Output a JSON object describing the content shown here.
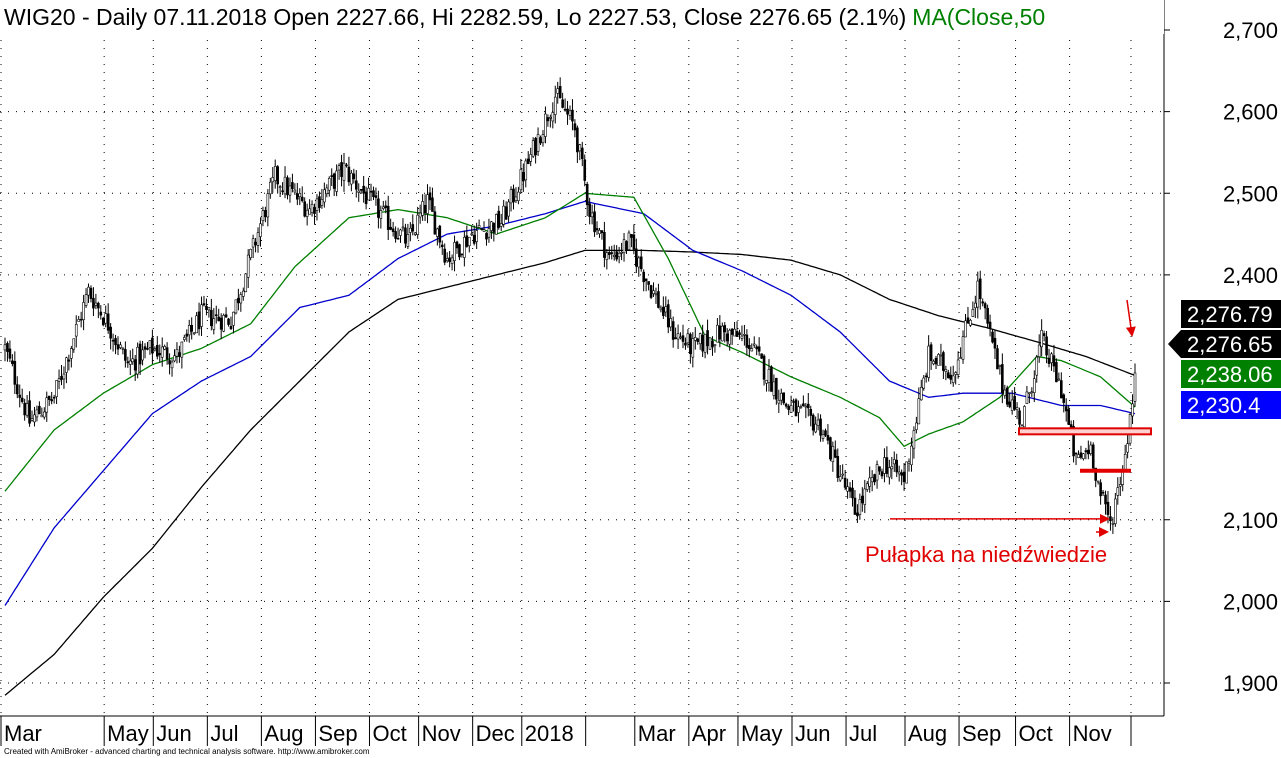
{
  "chart_data": {
    "type": "candlestick",
    "title": "WIG20 - Daily 07.11.2018 Open 2227.66, Hi 2282.59, Lo 2227.53, Close 2276.65 (2.1%)",
    "title_overlay": "MA(Close,50",
    "ylim": [
      1850,
      2730
    ],
    "y_ticks": [
      "2,700",
      "2,600",
      "2,500",
      "2,400",
      "2,100",
      "2,000",
      "1,900"
    ],
    "y_tick_values": [
      2700,
      2600,
      2500,
      2400,
      2100,
      2000,
      1900
    ],
    "x_ticks": [
      "Mar",
      "May",
      "Jun",
      "Jul",
      "Aug",
      "Sep",
      "Oct",
      "Nov",
      "Dec",
      "2018",
      "Mar",
      "Apr",
      "May",
      "Jun",
      "Jul",
      "Aug",
      "Sep",
      "Oct",
      "Nov"
    ],
    "grid": true,
    "series_colors": {
      "ma50": "#008000",
      "ma100": "#0000cc",
      "ma200": "#000000",
      "price": "#000000"
    },
    "price_keypoints": [
      [
        0,
        2310
      ],
      [
        10,
        2220
      ],
      [
        20,
        2250
      ],
      [
        34,
        2380
      ],
      [
        42,
        2340
      ],
      [
        50,
        2290
      ],
      [
        60,
        2310
      ],
      [
        70,
        2300
      ],
      [
        80,
        2350
      ],
      [
        92,
        2345
      ],
      [
        110,
        2520
      ],
      [
        124,
        2480
      ],
      [
        138,
        2530
      ],
      [
        150,
        2485
      ],
      [
        164,
        2440
      ],
      [
        172,
        2490
      ],
      [
        180,
        2420
      ],
      [
        190,
        2450
      ],
      [
        202,
        2465
      ],
      [
        212,
        2530
      ],
      [
        224,
        2620
      ],
      [
        232,
        2580
      ],
      [
        238,
        2480
      ],
      [
        246,
        2420
      ],
      [
        254,
        2440
      ],
      [
        262,
        2390
      ],
      [
        272,
        2330
      ],
      [
        280,
        2310
      ],
      [
        292,
        2330
      ],
      [
        302,
        2320
      ],
      [
        318,
        2240
      ],
      [
        332,
        2215
      ],
      [
        346,
        2110
      ],
      [
        358,
        2170
      ],
      [
        366,
        2150
      ],
      [
        376,
        2300
      ],
      [
        386,
        2280
      ],
      [
        396,
        2385
      ],
      [
        406,
        2265
      ],
      [
        414,
        2220
      ],
      [
        422,
        2320
      ],
      [
        430,
        2260
      ],
      [
        436,
        2170
      ],
      [
        442,
        2190
      ],
      [
        446,
        2130
      ],
      [
        450,
        2095
      ],
      [
        456,
        2180
      ],
      [
        460,
        2276
      ]
    ],
    "ma50_keypoints": [
      [
        0,
        2135
      ],
      [
        20,
        2210
      ],
      [
        40,
        2255
      ],
      [
        60,
        2290
      ],
      [
        80,
        2310
      ],
      [
        100,
        2340
      ],
      [
        118,
        2410
      ],
      [
        140,
        2470
      ],
      [
        160,
        2480
      ],
      [
        180,
        2470
      ],
      [
        200,
        2450
      ],
      [
        220,
        2470
      ],
      [
        236,
        2500
      ],
      [
        256,
        2495
      ],
      [
        270,
        2420
      ],
      [
        285,
        2325
      ],
      [
        300,
        2305
      ],
      [
        320,
        2275
      ],
      [
        340,
        2250
      ],
      [
        356,
        2225
      ],
      [
        366,
        2190
      ],
      [
        376,
        2205
      ],
      [
        390,
        2220
      ],
      [
        405,
        2250
      ],
      [
        420,
        2300
      ],
      [
        430,
        2295
      ],
      [
        446,
        2275
      ],
      [
        460,
        2238
      ]
    ],
    "ma100_keypoints": [
      [
        0,
        1995
      ],
      [
        20,
        2090
      ],
      [
        40,
        2160
      ],
      [
        60,
        2230
      ],
      [
        80,
        2270
      ],
      [
        100,
        2300
      ],
      [
        120,
        2360
      ],
      [
        140,
        2375
      ],
      [
        160,
        2420
      ],
      [
        180,
        2450
      ],
      [
        200,
        2460
      ],
      [
        220,
        2475
      ],
      [
        236,
        2490
      ],
      [
        260,
        2475
      ],
      [
        280,
        2430
      ],
      [
        300,
        2405
      ],
      [
        320,
        2375
      ],
      [
        340,
        2330
      ],
      [
        360,
        2270
      ],
      [
        376,
        2250
      ],
      [
        390,
        2255
      ],
      [
        410,
        2255
      ],
      [
        430,
        2240
      ],
      [
        446,
        2240
      ],
      [
        460,
        2230
      ]
    ],
    "ma200_keypoints": [
      [
        0,
        1885
      ],
      [
        20,
        1935
      ],
      [
        40,
        2005
      ],
      [
        60,
        2065
      ],
      [
        80,
        2140
      ],
      [
        100,
        2210
      ],
      [
        120,
        2270
      ],
      [
        140,
        2330
      ],
      [
        160,
        2370
      ],
      [
        180,
        2385
      ],
      [
        200,
        2400
      ],
      [
        220,
        2415
      ],
      [
        236,
        2430
      ],
      [
        260,
        2430
      ],
      [
        280,
        2428
      ],
      [
        300,
        2425
      ],
      [
        320,
        2418
      ],
      [
        340,
        2400
      ],
      [
        360,
        2370
      ],
      [
        380,
        2350
      ],
      [
        400,
        2335
      ],
      [
        420,
        2318
      ],
      [
        440,
        2300
      ],
      [
        460,
        2276.79
      ]
    ],
    "last_values": [
      {
        "label": "2,276.79",
        "value": 2276.79,
        "bg": "#000000",
        "fg": "#ffffff"
      },
      {
        "label": "2,276.65",
        "value": 2276.65,
        "bg": "#000000",
        "fg": "#ffffff"
      },
      {
        "label": "2,238.06",
        "value": 2238.06,
        "bg": "#008000",
        "fg": "#ffffff"
      },
      {
        "label": "2,230.4",
        "value": 2230.4,
        "bg": "#0000ff",
        "fg": "#ffffff"
      }
    ],
    "annotation_text": "Pułapka na niedźwiedzie",
    "footer": "Created with AmiBroker - advanced charting and technical analysis software. http://www.amibroker.com"
  }
}
